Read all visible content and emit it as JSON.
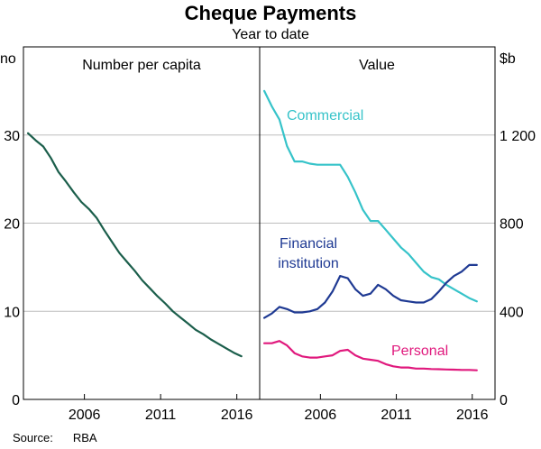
{
  "header": {
    "title": "Cheque Payments",
    "subtitle": "Year to date"
  },
  "footer": {
    "source_label": "Source:",
    "source_value": "RBA"
  },
  "colors": {
    "per_capita": "#1b5e4b",
    "commercial": "#36c3c9",
    "financial_institution": "#1f3a93",
    "personal": "#e0197d",
    "grid": "#bdbdbd",
    "frame": "#000000"
  },
  "chart_data": [
    {
      "type": "line",
      "title": "Number per capita",
      "ylabel": "no",
      "ylim": [
        0,
        40
      ],
      "yticks": [
        0,
        10,
        20,
        30
      ],
      "xlim": [
        2002.0,
        2017.5
      ],
      "xticks": [
        2006,
        2011,
        2016
      ],
      "grid": true,
      "series": [
        {
          "x": [
            2002.3,
            2002.8,
            2003.3,
            2003.8,
            2004.3,
            2004.8,
            2005.3,
            2005.8,
            2006.3,
            2006.8,
            2007.3,
            2007.8,
            2008.3,
            2008.8,
            2009.3,
            2009.8,
            2010.3,
            2010.8,
            2011.3,
            2011.8,
            2012.3,
            2012.8,
            2013.3,
            2013.8,
            2014.3,
            2014.8,
            2015.3,
            2015.8,
            2016.3
          ],
          "values": [
            30.2,
            29.4,
            28.7,
            27.4,
            25.8,
            24.7,
            23.5,
            22.4,
            21.6,
            20.6,
            19.2,
            17.9,
            16.6,
            15.6,
            14.6,
            13.5,
            12.6,
            11.7,
            10.9,
            10.0,
            9.3,
            8.6,
            7.9,
            7.4,
            6.8,
            6.3,
            5.8,
            5.3,
            4.9
          ]
        }
      ]
    },
    {
      "type": "line",
      "title": "Value",
      "ylabel": "$b",
      "ylim": [
        0,
        1600
      ],
      "yticks": [
        0,
        400,
        800,
        1200
      ],
      "ytick_labels": [
        "0",
        "400",
        "800",
        "1 200"
      ],
      "xlim": [
        2002.0,
        2017.5
      ],
      "xticks": [
        2006,
        2011,
        2016
      ],
      "grid": true,
      "series": [
        {
          "name": "Commercial",
          "color_key": "commercial",
          "x": [
            2002.3,
            2002.8,
            2003.3,
            2003.8,
            2004.3,
            2004.8,
            2005.3,
            2005.8,
            2006.3,
            2006.8,
            2007.3,
            2007.8,
            2008.3,
            2008.8,
            2009.3,
            2009.8,
            2010.3,
            2010.8,
            2011.3,
            2011.8,
            2012.3,
            2012.8,
            2013.3,
            2013.8,
            2014.3,
            2014.8,
            2015.3,
            2015.8,
            2016.3
          ],
          "values": [
            1400,
            1330,
            1270,
            1150,
            1080,
            1080,
            1070,
            1065,
            1065,
            1065,
            1065,
            1010,
            940,
            860,
            810,
            810,
            770,
            730,
            690,
            660,
            620,
            580,
            555,
            545,
            520,
            500,
            480,
            460,
            445
          ]
        },
        {
          "name": "Financial institution",
          "color_key": "financial_institution",
          "x": [
            2002.3,
            2002.8,
            2003.3,
            2003.8,
            2004.3,
            2004.8,
            2005.3,
            2005.8,
            2006.3,
            2006.8,
            2007.3,
            2007.8,
            2008.3,
            2008.8,
            2009.3,
            2009.8,
            2010.3,
            2010.8,
            2011.3,
            2011.8,
            2012.3,
            2012.8,
            2013.3,
            2013.8,
            2014.3,
            2014.8,
            2015.3,
            2015.8,
            2016.3
          ],
          "values": [
            370,
            390,
            420,
            410,
            395,
            395,
            400,
            410,
            440,
            490,
            560,
            550,
            500,
            470,
            480,
            520,
            500,
            470,
            450,
            445,
            440,
            440,
            455,
            490,
            530,
            560,
            580,
            610,
            610
          ]
        },
        {
          "name": "Personal",
          "color_key": "personal",
          "x": [
            2002.3,
            2002.8,
            2003.3,
            2003.8,
            2004.3,
            2004.8,
            2005.3,
            2005.8,
            2006.3,
            2006.8,
            2007.3,
            2007.8,
            2008.3,
            2008.8,
            2009.3,
            2009.8,
            2010.3,
            2010.8,
            2011.3,
            2011.8,
            2012.3,
            2012.8,
            2013.3,
            2013.8,
            2014.3,
            2014.8,
            2015.3,
            2015.8,
            2016.3
          ],
          "values": [
            255,
            255,
            265,
            245,
            210,
            195,
            190,
            190,
            195,
            200,
            220,
            225,
            200,
            185,
            180,
            175,
            160,
            150,
            145,
            145,
            140,
            140,
            138,
            137,
            136,
            135,
            134,
            134,
            132
          ]
        }
      ]
    }
  ]
}
